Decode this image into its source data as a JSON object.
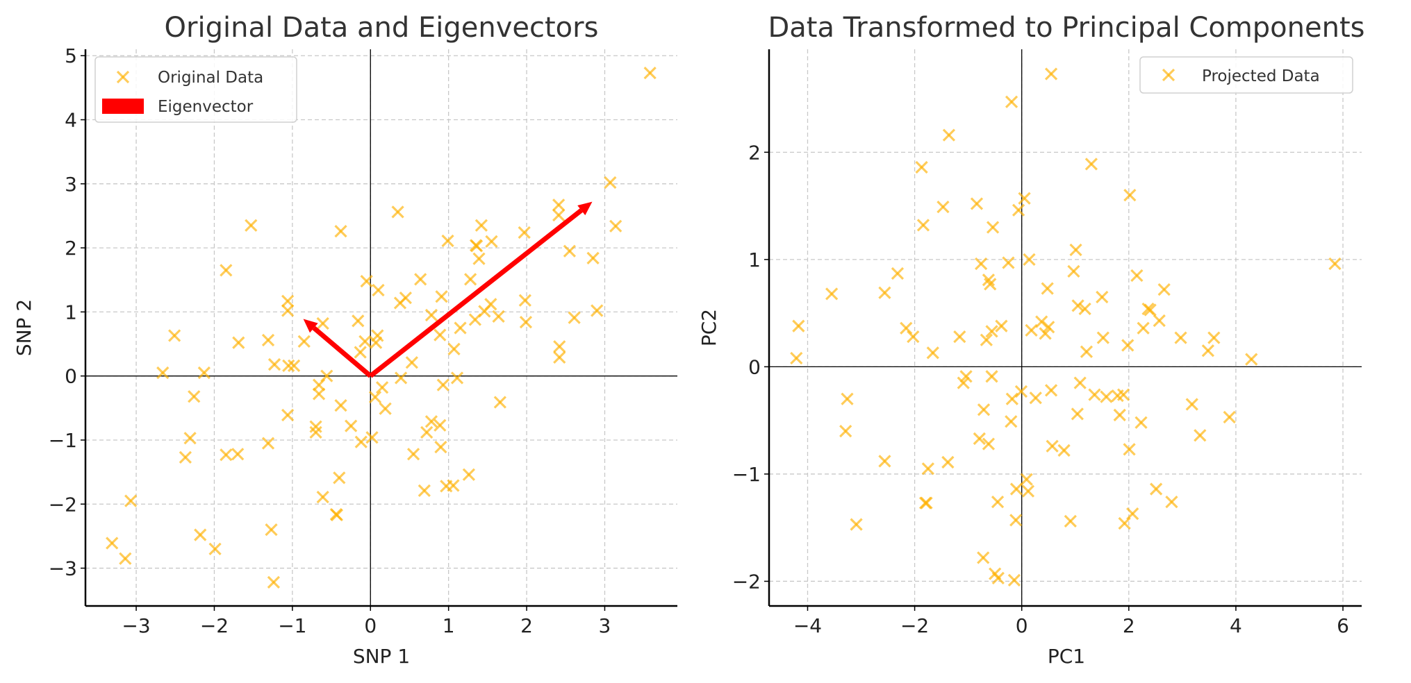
{
  "chart_data": [
    {
      "type": "scatter",
      "title": "Original Data and Eigenvectors",
      "xlabel": "SNP 1",
      "ylabel": "SNP 2",
      "xlim": [
        -3.65,
        3.93
      ],
      "ylim": [
        -3.59,
        5.1
      ],
      "xticks": [
        -3,
        -2,
        -1,
        0,
        1,
        2,
        3
      ],
      "yticks": [
        -3,
        -2,
        -1,
        0,
        1,
        2,
        3,
        4,
        5
      ],
      "grid": true,
      "legend_position": "top-left",
      "marker_color": "#FFB000",
      "arrow_color": "#FF0000",
      "series": [
        {
          "name": "Original Data",
          "marker": "x",
          "points": [
            [
              3.58,
              4.73
            ],
            [
              3.07,
              3.02
            ],
            [
              3.14,
              2.34
            ],
            [
              2.41,
              2.67
            ],
            [
              2.41,
              2.51
            ],
            [
              2.55,
              1.95
            ],
            [
              2.85,
              1.84
            ],
            [
              2.9,
              1.02
            ],
            [
              2.61,
              0.91
            ],
            [
              2.42,
              0.46
            ],
            [
              2.42,
              0.29
            ],
            [
              1.97,
              2.24
            ],
            [
              1.98,
              1.18
            ],
            [
              1.99,
              0.84
            ],
            [
              1.55,
              2.1
            ],
            [
              1.42,
              2.35
            ],
            [
              1.35,
              2.04
            ],
            [
              1.36,
              2.03
            ],
            [
              1.39,
              1.83
            ],
            [
              1.28,
              1.51
            ],
            [
              1.54,
              1.12
            ],
            [
              1.46,
              1.01
            ],
            [
              1.64,
              0.93
            ],
            [
              1.34,
              0.88
            ],
            [
              0.99,
              2.11
            ],
            [
              0.91,
              1.24
            ],
            [
              0.78,
              0.95
            ],
            [
              0.89,
              0.64
            ],
            [
              1.15,
              0.75
            ],
            [
              1.07,
              0.42
            ],
            [
              1.11,
              -0.03
            ],
            [
              1.66,
              -0.41
            ],
            [
              0.93,
              -0.14
            ],
            [
              0.64,
              1.51
            ],
            [
              0.35,
              2.56
            ],
            [
              0.38,
              1.14
            ],
            [
              0.45,
              1.22
            ],
            [
              0.53,
              0.21
            ],
            [
              0.39,
              -0.03
            ],
            [
              0.1,
              1.34
            ],
            [
              -0.05,
              1.48
            ],
            [
              0.09,
              0.63
            ],
            [
              0.07,
              0.52
            ],
            [
              -0.07,
              0.54
            ],
            [
              -0.13,
              0.37
            ],
            [
              -0.16,
              0.86
            ],
            [
              0.06,
              -0.33
            ],
            [
              0.15,
              -0.18
            ],
            [
              0.19,
              -0.51
            ],
            [
              0.02,
              -0.96
            ],
            [
              -0.12,
              -1.03
            ],
            [
              -0.25,
              -0.78
            ],
            [
              -0.38,
              -0.46
            ],
            [
              -0.56,
              0.0
            ],
            [
              -0.61,
              0.82
            ],
            [
              -0.66,
              -0.14
            ],
            [
              -0.66,
              -0.28
            ],
            [
              -0.7,
              -0.79
            ],
            [
              -0.7,
              -0.88
            ],
            [
              -0.85,
              0.54
            ],
            [
              -0.98,
              0.16
            ],
            [
              -1.05,
              0.16
            ],
            [
              -1.23,
              0.18
            ],
            [
              -1.06,
              1.17
            ],
            [
              -1.06,
              1.02
            ],
            [
              -1.06,
              -0.61
            ],
            [
              -1.31,
              0.56
            ],
            [
              -1.31,
              -1.05
            ],
            [
              -1.53,
              2.35
            ],
            [
              -1.85,
              1.65
            ],
            [
              -1.69,
              0.52
            ],
            [
              -1.85,
              -1.23
            ],
            [
              -1.7,
              -1.22
            ],
            [
              -2.51,
              0.63
            ],
            [
              -2.66,
              0.05
            ],
            [
              -2.13,
              0.05
            ],
            [
              -2.26,
              -0.32
            ],
            [
              -2.31,
              -0.97
            ],
            [
              -2.37,
              -1.27
            ],
            [
              -2.18,
              -2.48
            ],
            [
              -1.99,
              -2.7
            ],
            [
              -1.27,
              -2.4
            ],
            [
              -1.24,
              -3.22
            ],
            [
              -3.07,
              -1.95
            ],
            [
              -3.31,
              -2.61
            ],
            [
              -3.14,
              -2.85
            ],
            [
              -0.4,
              -1.59
            ],
            [
              -0.44,
              -2.16
            ],
            [
              -0.43,
              -2.17
            ],
            [
              -0.61,
              -1.89
            ],
            [
              0.55,
              -1.22
            ],
            [
              0.69,
              -1.79
            ],
            [
              0.72,
              -0.88
            ],
            [
              0.78,
              -0.71
            ],
            [
              0.89,
              -0.77
            ],
            [
              0.9,
              -1.11
            ],
            [
              0.97,
              -1.72
            ],
            [
              1.06,
              -1.71
            ],
            [
              1.26,
              -1.54
            ],
            [
              -0.38,
              2.26
            ]
          ]
        },
        {
          "name": "Eigenvector",
          "type": "arrow",
          "vectors": [
            [
              0,
              0,
              2.84,
              2.72
            ],
            [
              0,
              0,
              -0.86,
              0.89
            ]
          ]
        }
      ]
    },
    {
      "type": "scatter",
      "title": "Data Transformed to Principal Components",
      "xlabel": "PC1",
      "ylabel": "PC2",
      "xlim": [
        -4.72,
        6.35
      ],
      "ylim": [
        -2.23,
        2.96
      ],
      "xticks": [
        -4,
        -2,
        0,
        2,
        4,
        6
      ],
      "yticks": [
        -2,
        -1,
        0,
        1,
        2
      ],
      "grid": true,
      "legend_position": "top-right",
      "marker_color": "#FFB000",
      "series": [
        {
          "name": "Projected Data",
          "marker": "x",
          "points": [
            [
              0.55,
              2.73
            ],
            [
              -0.19,
              2.47
            ],
            [
              -1.36,
              2.16
            ],
            [
              -1.87,
              1.86
            ],
            [
              1.3,
              1.89
            ],
            [
              2.02,
              1.6
            ],
            [
              0.05,
              1.57
            ],
            [
              -0.06,
              1.46
            ],
            [
              -1.47,
              1.49
            ],
            [
              -0.84,
              1.52
            ],
            [
              -1.84,
              1.32
            ],
            [
              -0.54,
              1.3
            ],
            [
              1.01,
              1.09
            ],
            [
              0.14,
              1.0
            ],
            [
              -0.25,
              0.97
            ],
            [
              -0.76,
              0.96
            ],
            [
              0.97,
              0.89
            ],
            [
              -2.32,
              0.87
            ],
            [
              2.15,
              0.85
            ],
            [
              -0.62,
              0.81
            ],
            [
              -0.59,
              0.77
            ],
            [
              -3.55,
              0.68
            ],
            [
              -2.56,
              0.69
            ],
            [
              0.48,
              0.73
            ],
            [
              2.66,
              0.72
            ],
            [
              1.5,
              0.65
            ],
            [
              1.05,
              0.57
            ],
            [
              1.18,
              0.54
            ],
            [
              2.36,
              0.54
            ],
            [
              2.4,
              0.53
            ],
            [
              2.57,
              0.43
            ],
            [
              -4.17,
              0.38
            ],
            [
              -2.16,
              0.36
            ],
            [
              -2.03,
              0.28
            ],
            [
              -1.16,
              0.28
            ],
            [
              -1.66,
              0.13
            ],
            [
              -0.38,
              0.38
            ],
            [
              -0.56,
              0.33
            ],
            [
              -0.66,
              0.25
            ],
            [
              0.37,
              0.42
            ],
            [
              0.18,
              0.34
            ],
            [
              0.5,
              0.37
            ],
            [
              0.44,
              0.31
            ],
            [
              2.27,
              0.36
            ],
            [
              1.52,
              0.27
            ],
            [
              1.98,
              0.2
            ],
            [
              1.21,
              0.14
            ],
            [
              2.97,
              0.27
            ],
            [
              3.59,
              0.27
            ],
            [
              3.48,
              0.15
            ],
            [
              4.29,
              0.07
            ],
            [
              5.85,
              0.96
            ],
            [
              -4.21,
              0.08
            ],
            [
              -3.26,
              -0.3
            ],
            [
              -3.29,
              -0.6
            ],
            [
              -2.56,
              -0.88
            ],
            [
              -3.09,
              -1.47
            ],
            [
              -1.75,
              -0.95
            ],
            [
              -1.38,
              -0.89
            ],
            [
              -1.8,
              -1.27
            ],
            [
              -1.78,
              -1.27
            ],
            [
              -1.04,
              -0.09
            ],
            [
              -1.09,
              -0.15
            ],
            [
              -0.56,
              -0.09
            ],
            [
              -0.71,
              -0.4
            ],
            [
              -0.79,
              -0.67
            ],
            [
              -0.62,
              -0.72
            ],
            [
              -0.2,
              -0.51
            ],
            [
              -0.18,
              -0.3
            ],
            [
              -0.01,
              -0.23
            ],
            [
              0.26,
              -0.29
            ],
            [
              0.55,
              -0.22
            ],
            [
              1.09,
              -0.15
            ],
            [
              1.36,
              -0.26
            ],
            [
              1.58,
              -0.28
            ],
            [
              1.79,
              -0.27
            ],
            [
              1.9,
              -0.26
            ],
            [
              1.04,
              -0.44
            ],
            [
              1.83,
              -0.45
            ],
            [
              2.23,
              -0.52
            ],
            [
              3.18,
              -0.35
            ],
            [
              3.33,
              -0.64
            ],
            [
              3.88,
              -0.47
            ],
            [
              0.57,
              -0.74
            ],
            [
              0.79,
              -0.78
            ],
            [
              2.01,
              -0.77
            ],
            [
              2.51,
              -1.14
            ],
            [
              2.8,
              -1.26
            ],
            [
              2.07,
              -1.37
            ],
            [
              1.92,
              -1.46
            ],
            [
              0.91,
              -1.44
            ],
            [
              0.09,
              -1.05
            ],
            [
              0.12,
              -1.16
            ],
            [
              -0.1,
              -1.14
            ],
            [
              -0.11,
              -1.43
            ],
            [
              -0.45,
              -1.26
            ],
            [
              -0.72,
              -1.78
            ],
            [
              -0.5,
              -1.93
            ],
            [
              -0.44,
              -1.97
            ],
            [
              -0.14,
              -1.99
            ]
          ]
        }
      ]
    }
  ]
}
